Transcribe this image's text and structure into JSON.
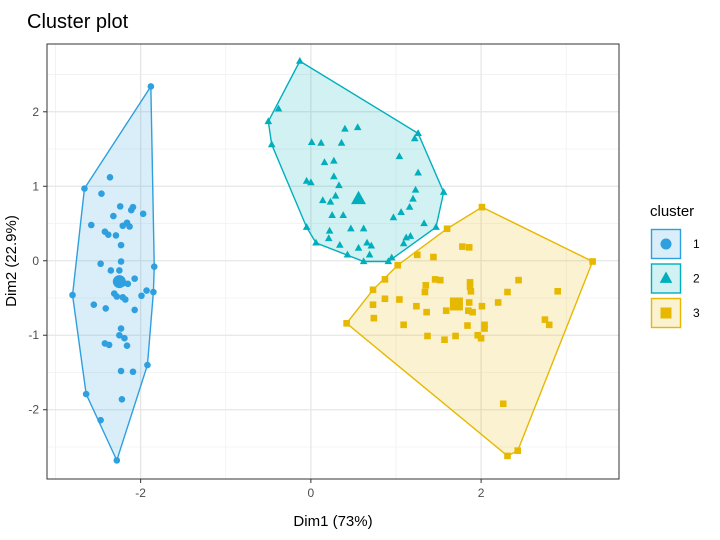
{
  "chart_data": {
    "type": "scatter",
    "title": "Cluster plot",
    "xlabel": "Dim1 (73%)",
    "ylabel": "Dim2 (22.9%)",
    "xlim": [
      -3.1,
      3.62
    ],
    "ylim": [
      -2.93,
      2.91
    ],
    "xticks": [
      -2,
      0,
      2
    ],
    "yticks": [
      -2,
      -1,
      0,
      1,
      2
    ],
    "grid": true,
    "legend": {
      "title": "cluster",
      "placement": "right"
    },
    "series": [
      {
        "name": "1",
        "color": "#2E9FDF",
        "marker": "circle",
        "center": [
          -2.25,
          -0.28
        ],
        "points": [
          [
            -1.88,
            2.34
          ],
          [
            -2.66,
            0.97
          ],
          [
            -2.36,
            1.12
          ],
          [
            -2.46,
            0.9
          ],
          [
            -2.24,
            0.73
          ],
          [
            -2.09,
            0.72
          ],
          [
            -2.11,
            0.68
          ],
          [
            -1.97,
            0.63
          ],
          [
            -2.32,
            0.6
          ],
          [
            -2.58,
            0.48
          ],
          [
            -2.21,
            0.47
          ],
          [
            -2.16,
            0.51
          ],
          [
            -2.13,
            0.46
          ],
          [
            -2.42,
            0.39
          ],
          [
            -2.38,
            0.35
          ],
          [
            -2.29,
            0.34
          ],
          [
            -2.23,
            0.21
          ],
          [
            -2.23,
            -0.01
          ],
          [
            -2.47,
            -0.04
          ],
          [
            -2.35,
            -0.13
          ],
          [
            -2.25,
            -0.13
          ],
          [
            -1.84,
            -0.08
          ],
          [
            -2.07,
            -0.24
          ],
          [
            -2.8,
            -0.46
          ],
          [
            -1.85,
            -0.42
          ],
          [
            -1.93,
            -0.4
          ],
          [
            -1.99,
            -0.47
          ],
          [
            -2.31,
            -0.44
          ],
          [
            -2.28,
            -0.48
          ],
          [
            -2.21,
            -0.49
          ],
          [
            -2.18,
            -0.52
          ],
          [
            -2.55,
            -0.59
          ],
          [
            -2.41,
            -0.64
          ],
          [
            -2.07,
            -0.66
          ],
          [
            -2.23,
            -0.91
          ],
          [
            -2.25,
            -1.0
          ],
          [
            -2.19,
            -1.04
          ],
          [
            -2.16,
            -1.14
          ],
          [
            -2.42,
            -1.11
          ],
          [
            -2.37,
            -1.13
          ],
          [
            -1.92,
            -1.4
          ],
          [
            -2.23,
            -1.48
          ],
          [
            -2.09,
            -1.49
          ],
          [
            -2.64,
            -1.79
          ],
          [
            -2.22,
            -1.86
          ],
          [
            -2.47,
            -2.14
          ],
          [
            -2.28,
            -2.68
          ],
          [
            -2.27,
            -0.26
          ],
          [
            -2.2,
            -0.3
          ],
          [
            -2.15,
            -0.31
          ]
        ]
      },
      {
        "name": "2",
        "color": "#00AFBB",
        "marker": "triangle",
        "center": [
          0.56,
          0.83
        ],
        "points": [
          [
            -0.13,
            2.68
          ],
          [
            -0.38,
            2.04
          ],
          [
            -0.5,
            1.87
          ],
          [
            -0.46,
            1.56
          ],
          [
            0.4,
            1.77
          ],
          [
            0.55,
            1.79
          ],
          [
            0.01,
            1.59
          ],
          [
            0.12,
            1.58
          ],
          [
            0.36,
            1.58
          ],
          [
            1.26,
            1.71
          ],
          [
            1.22,
            1.64
          ],
          [
            1.04,
            1.4
          ],
          [
            0.16,
            1.32
          ],
          [
            0.27,
            1.34
          ],
          [
            1.26,
            1.18
          ],
          [
            0.27,
            1.13
          ],
          [
            -0.05,
            1.07
          ],
          [
            0.0,
            1.05
          ],
          [
            0.33,
            1.01
          ],
          [
            1.56,
            0.92
          ],
          [
            1.23,
            0.95
          ],
          [
            1.2,
            0.83
          ],
          [
            0.29,
            0.87
          ],
          [
            0.14,
            0.81
          ],
          [
            0.23,
            0.79
          ],
          [
            1.16,
            0.72
          ],
          [
            1.06,
            0.65
          ],
          [
            0.97,
            0.58
          ],
          [
            0.25,
            0.61
          ],
          [
            0.38,
            0.61
          ],
          [
            1.33,
            0.5
          ],
          [
            1.47,
            0.45
          ],
          [
            -0.05,
            0.45
          ],
          [
            0.47,
            0.43
          ],
          [
            0.62,
            0.43
          ],
          [
            0.22,
            0.4
          ],
          [
            0.21,
            0.3
          ],
          [
            0.06,
            0.24
          ],
          [
            1.12,
            0.31
          ],
          [
            1.17,
            0.33
          ],
          [
            1.09,
            0.23
          ],
          [
            0.34,
            0.21
          ],
          [
            0.56,
            0.17
          ],
          [
            0.66,
            0.24
          ],
          [
            0.71,
            0.2
          ],
          [
            0.43,
            0.08
          ],
          [
            0.69,
            0.08
          ],
          [
            0.62,
            -0.01
          ],
          [
            0.91,
            -0.01
          ],
          [
            0.95,
            0.04
          ]
        ]
      },
      {
        "name": "3",
        "color": "#E7B800",
        "marker": "square",
        "center": [
          1.71,
          -0.58
        ],
        "points": [
          [
            2.01,
            0.72
          ],
          [
            3.31,
            -0.01
          ],
          [
            1.6,
            0.43
          ],
          [
            1.25,
            0.08
          ],
          [
            1.44,
            0.05
          ],
          [
            1.78,
            0.19
          ],
          [
            1.86,
            0.18
          ],
          [
            1.02,
            -0.06
          ],
          [
            0.87,
            -0.25
          ],
          [
            0.73,
            -0.39
          ],
          [
            0.42,
            -0.84
          ],
          [
            0.73,
            -0.59
          ],
          [
            0.74,
            -0.77
          ],
          [
            0.87,
            -0.51
          ],
          [
            1.04,
            -0.52
          ],
          [
            1.35,
            -0.33
          ],
          [
            1.34,
            -0.42
          ],
          [
            1.46,
            -0.25
          ],
          [
            1.52,
            -0.26
          ],
          [
            1.24,
            -0.61
          ],
          [
            1.36,
            -0.69
          ],
          [
            1.09,
            -0.86
          ],
          [
            1.37,
            -1.01
          ],
          [
            1.57,
            -1.06
          ],
          [
            1.7,
            -1.01
          ],
          [
            1.59,
            -0.67
          ],
          [
            1.87,
            -0.29
          ],
          [
            1.87,
            -0.35
          ],
          [
            1.88,
            -0.41
          ],
          [
            1.86,
            -0.56
          ],
          [
            1.85,
            -0.67
          ],
          [
            1.9,
            -0.69
          ],
          [
            2.01,
            -0.61
          ],
          [
            1.84,
            -0.87
          ],
          [
            2.04,
            -0.86
          ],
          [
            2.04,
            -0.91
          ],
          [
            1.96,
            -1.0
          ],
          [
            2.0,
            -1.04
          ],
          [
            2.2,
            -0.56
          ],
          [
            2.31,
            -0.42
          ],
          [
            2.44,
            -0.26
          ],
          [
            2.9,
            -0.41
          ],
          [
            2.75,
            -0.79
          ],
          [
            2.8,
            -0.86
          ],
          [
            2.26,
            -1.92
          ],
          [
            2.43,
            -2.55
          ],
          [
            2.31,
            -2.62
          ],
          [
            1.68,
            -0.56
          ],
          [
            1.74,
            -0.6
          ]
        ]
      }
    ]
  }
}
